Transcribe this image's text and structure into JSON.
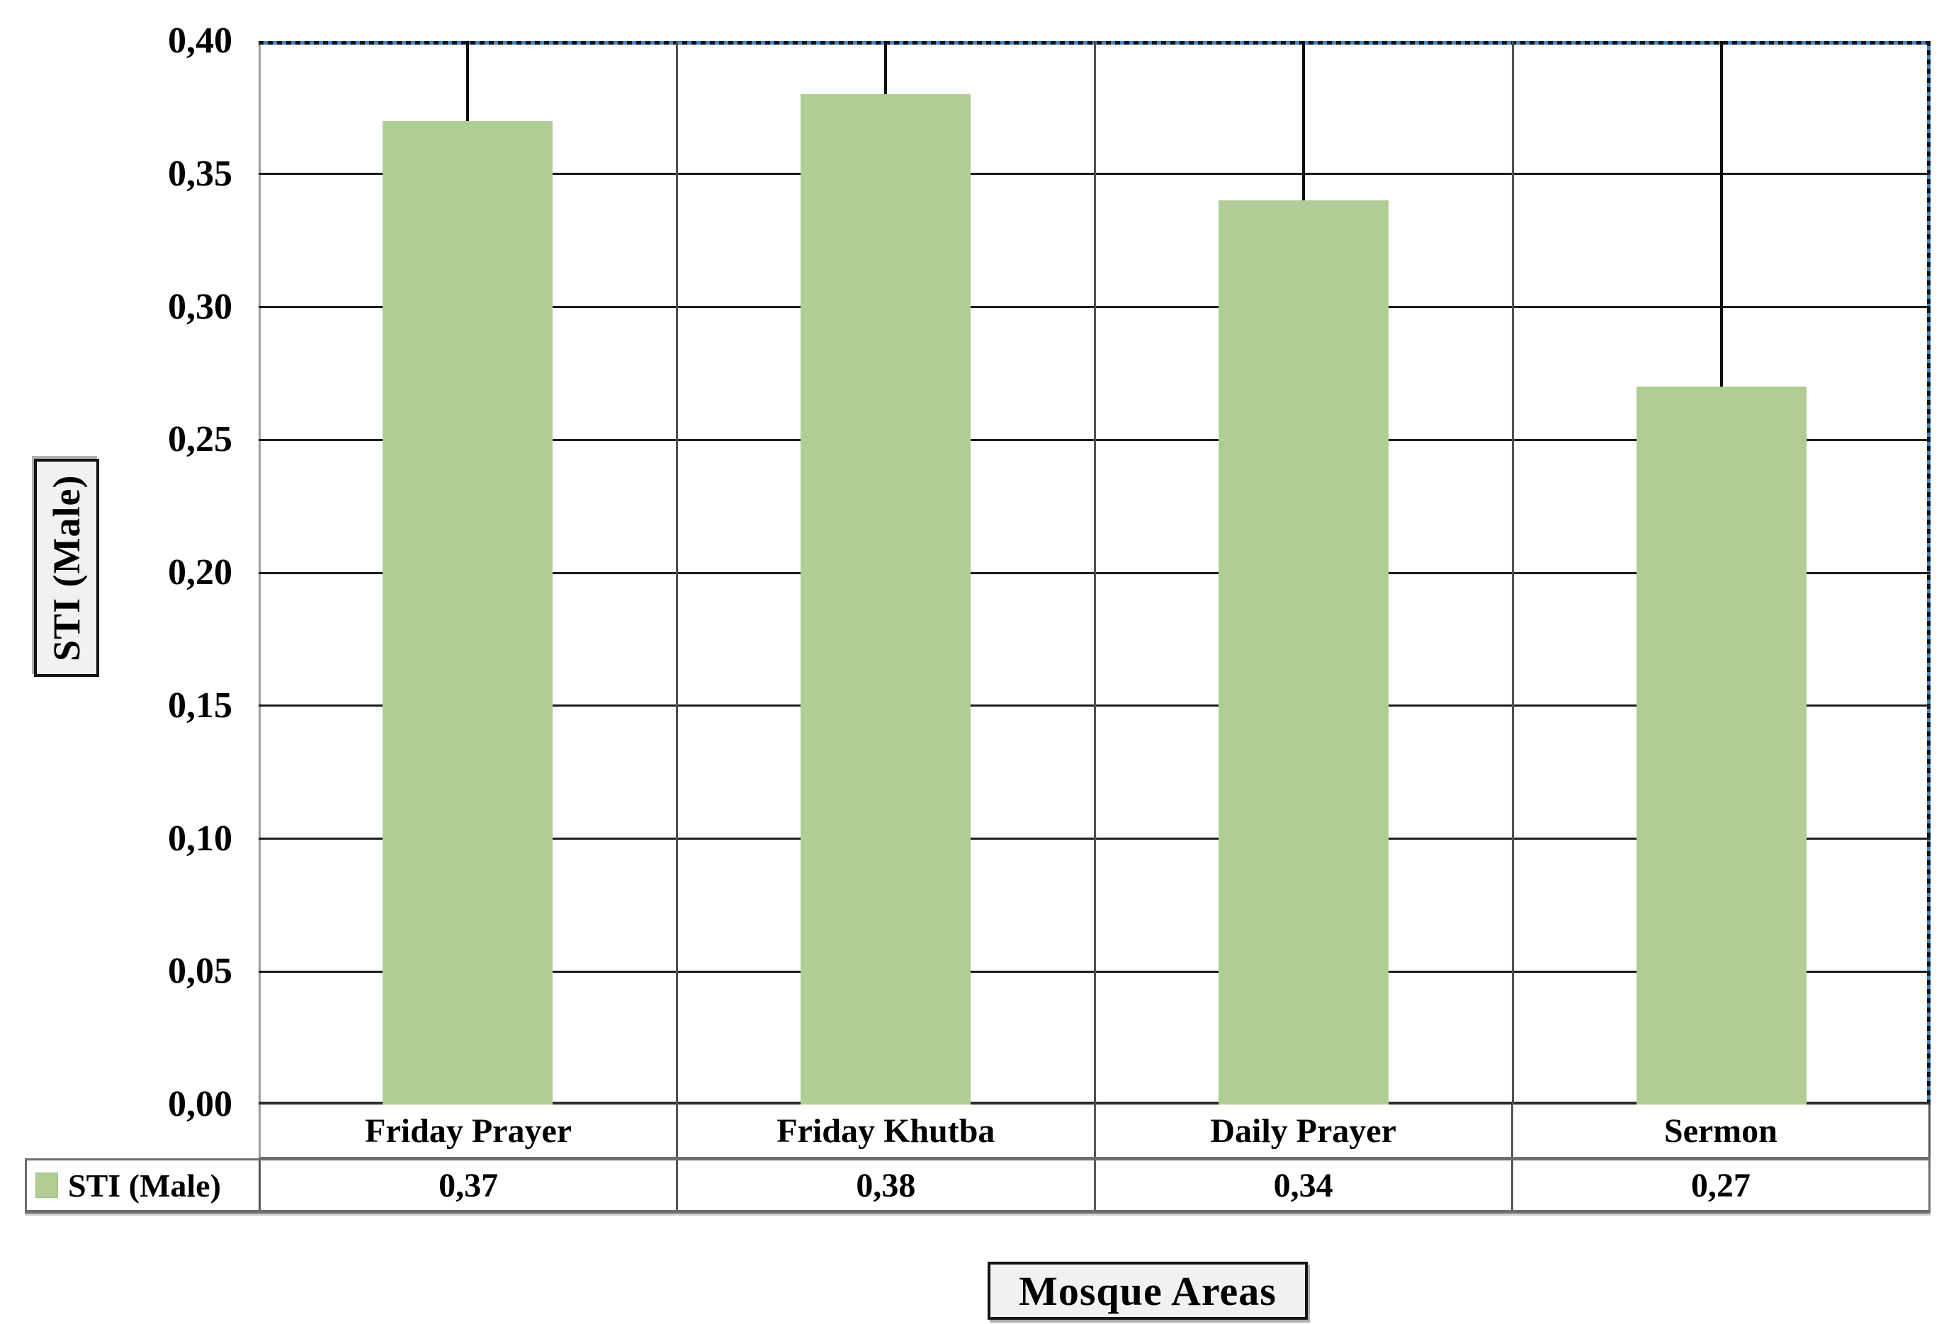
{
  "chart_data": {
    "type": "bar",
    "title": "",
    "categories": [
      "Friday Prayer",
      "Friday Khutba",
      "Daily Prayer",
      "Sermon"
    ],
    "series": [
      {
        "name": "STI (Male)",
        "values": [
          0.37,
          0.38,
          0.34,
          0.27
        ],
        "display_values": [
          "0,37",
          "0,38",
          "0,34",
          "0,27"
        ],
        "color": "#AFCD94"
      }
    ],
    "xlabel": "Mosque Areas",
    "ylabel": "STI (Male)",
    "ylim": [
      0,
      0.4
    ],
    "y_tick_values": [
      0,
      0.05,
      0.1,
      0.15,
      0.2,
      0.25,
      0.3,
      0.35,
      0.4
    ],
    "y_tick_labels": [
      "0,00",
      "0,05",
      "0,10",
      "0,15",
      "0,20",
      "0,25",
      "0,30",
      "0,35",
      "0,40"
    ],
    "number_format": "comma decimal separator",
    "grid": "horizontal major gridlines every 0,05 and vertical category separators",
    "error_bars": "black line from each bar top up to axis maximum 0,40",
    "legend_position": "bottom data table row"
  },
  "colors": {
    "bar_fill": "#AFCD94",
    "gridline": "#1c1c1c",
    "plot_left_border": "#9e9e9e",
    "plot_top_right_dotted_blue": "#3e83c5",
    "table_border": "#6e6e6e",
    "label_box_background": "#f1f1f1",
    "text": "#000000"
  }
}
